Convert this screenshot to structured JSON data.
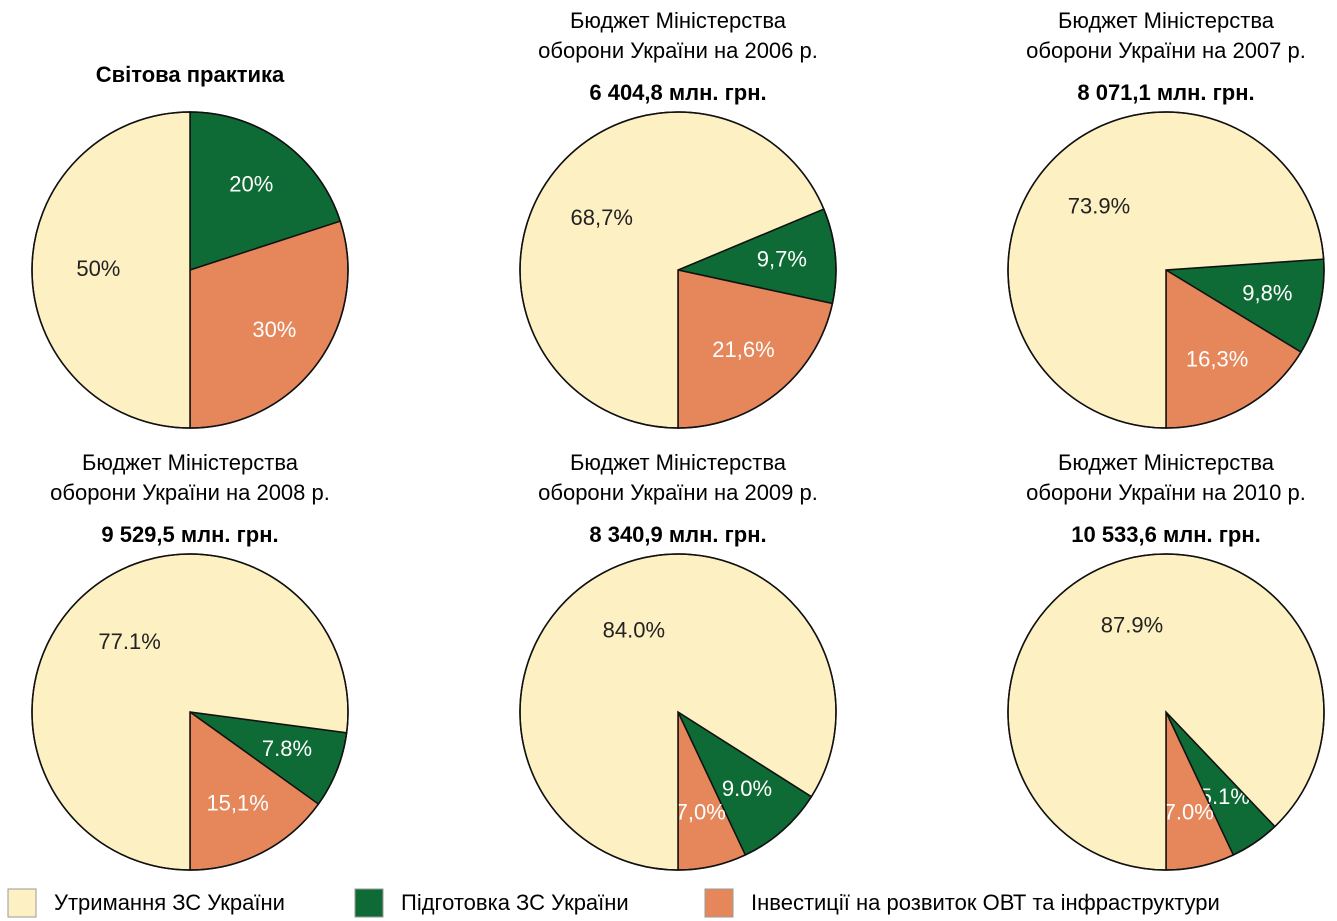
{
  "chart_data": [
    {
      "type": "pie",
      "title": "Світова практика",
      "values": [
        50,
        20,
        30
      ],
      "value_labels": [
        "50%",
        "20%",
        "30%"
      ]
    },
    {
      "type": "pie",
      "title": [
        "Бюджет Міністерства",
        "оборони України на 2006 р."
      ],
      "subtitle": "6 404,8 млн. грн.",
      "values": [
        68.7,
        9.7,
        21.6
      ],
      "value_labels": [
        "68,7%",
        "9,7%",
        "21,6%"
      ]
    },
    {
      "type": "pie",
      "title": [
        "Бюджет Міністерства",
        "оборони України на 2007 р."
      ],
      "subtitle": "8 071,1 млн. грн.",
      "values": [
        73.9,
        9.8,
        16.3
      ],
      "value_labels": [
        "73.9%",
        "9,8%",
        "16,3%"
      ]
    },
    {
      "type": "pie",
      "title": [
        "Бюджет Міністерства",
        "оборони України на 2008 р."
      ],
      "subtitle": "9 529,5 млн. грн.",
      "values": [
        77.1,
        7.8,
        15.1
      ],
      "value_labels": [
        "77.1%",
        "7.8%",
        "15,1%"
      ]
    },
    {
      "type": "pie",
      "title": [
        "Бюджет Міністерства",
        "оборони України на 2009 р."
      ],
      "subtitle": "8 340,9 млн. грн.",
      "values": [
        84.0,
        9.0,
        7.0
      ],
      "value_labels": [
        "84.0%",
        "9.0%",
        "7,0%"
      ]
    },
    {
      "type": "pie",
      "title": [
        "Бюджет Міністерства",
        "оборони України на 2010 р."
      ],
      "subtitle": "10 533,6 млн. грн.",
      "values": [
        87.9,
        5.1,
        7.0
      ],
      "value_labels": [
        "87.9%",
        "5.1%",
        "7.0%"
      ]
    }
  ],
  "legend": {
    "categories": [
      "Утримання ЗС України",
      "Підготовка ЗС України",
      "Інвестиції на розвиток ОВТ та інфраструктури"
    ],
    "colors": [
      "#fdf1c3",
      "#0f6b35",
      "#e5875a"
    ]
  }
}
